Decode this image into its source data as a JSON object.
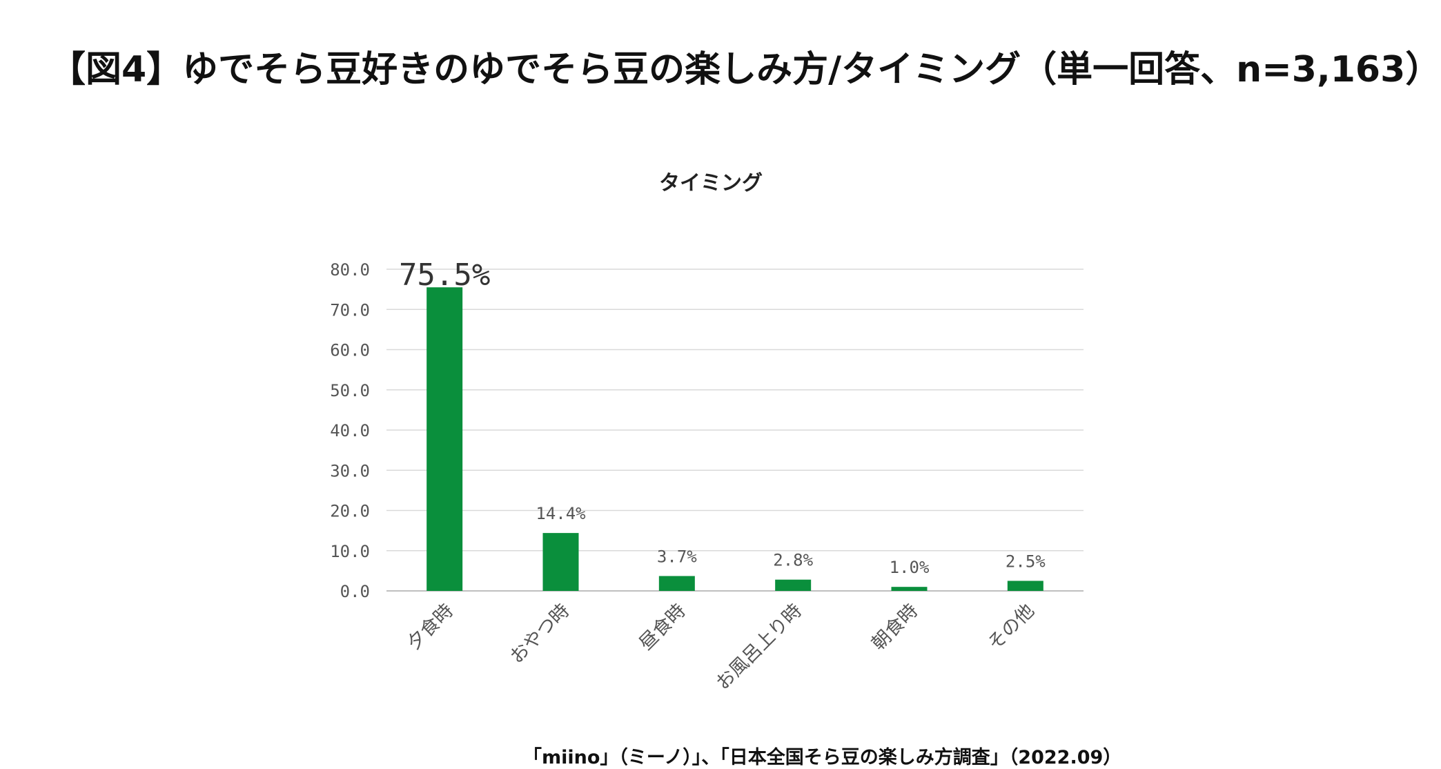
{
  "page": {
    "heading": "【図4】ゆでそら豆好きのゆでそら豆の楽しみ方/タイミング（単一回答、n=3,163）",
    "source": "「miino」（ミーノ）」、「日本全国そら豆の楽しみ方調査」（2022.09）"
  },
  "chart_data": {
    "type": "bar",
    "title": "タイミング",
    "xlabel": "",
    "ylabel": "",
    "ylim": [
      0,
      80
    ],
    "yticks": [
      "0.0",
      "10.0",
      "20.0",
      "30.0",
      "40.0",
      "50.0",
      "60.0",
      "70.0",
      "80.0"
    ],
    "categories": [
      "夕食時",
      "おやつ時",
      "昼食時",
      "お風呂上り時",
      "朝食時",
      "その他"
    ],
    "values": [
      75.5,
      14.4,
      3.7,
      2.8,
      1.0,
      2.5
    ],
    "data_labels": [
      "75.5%",
      "14.4%",
      "3.7%",
      "2.8%",
      "1.0%",
      "2.5%"
    ],
    "grid": true,
    "legend": "none",
    "colors": {
      "bar": "#0a8f3c",
      "grid": "#d9d9d9",
      "axis": "#bfbfbf"
    }
  }
}
